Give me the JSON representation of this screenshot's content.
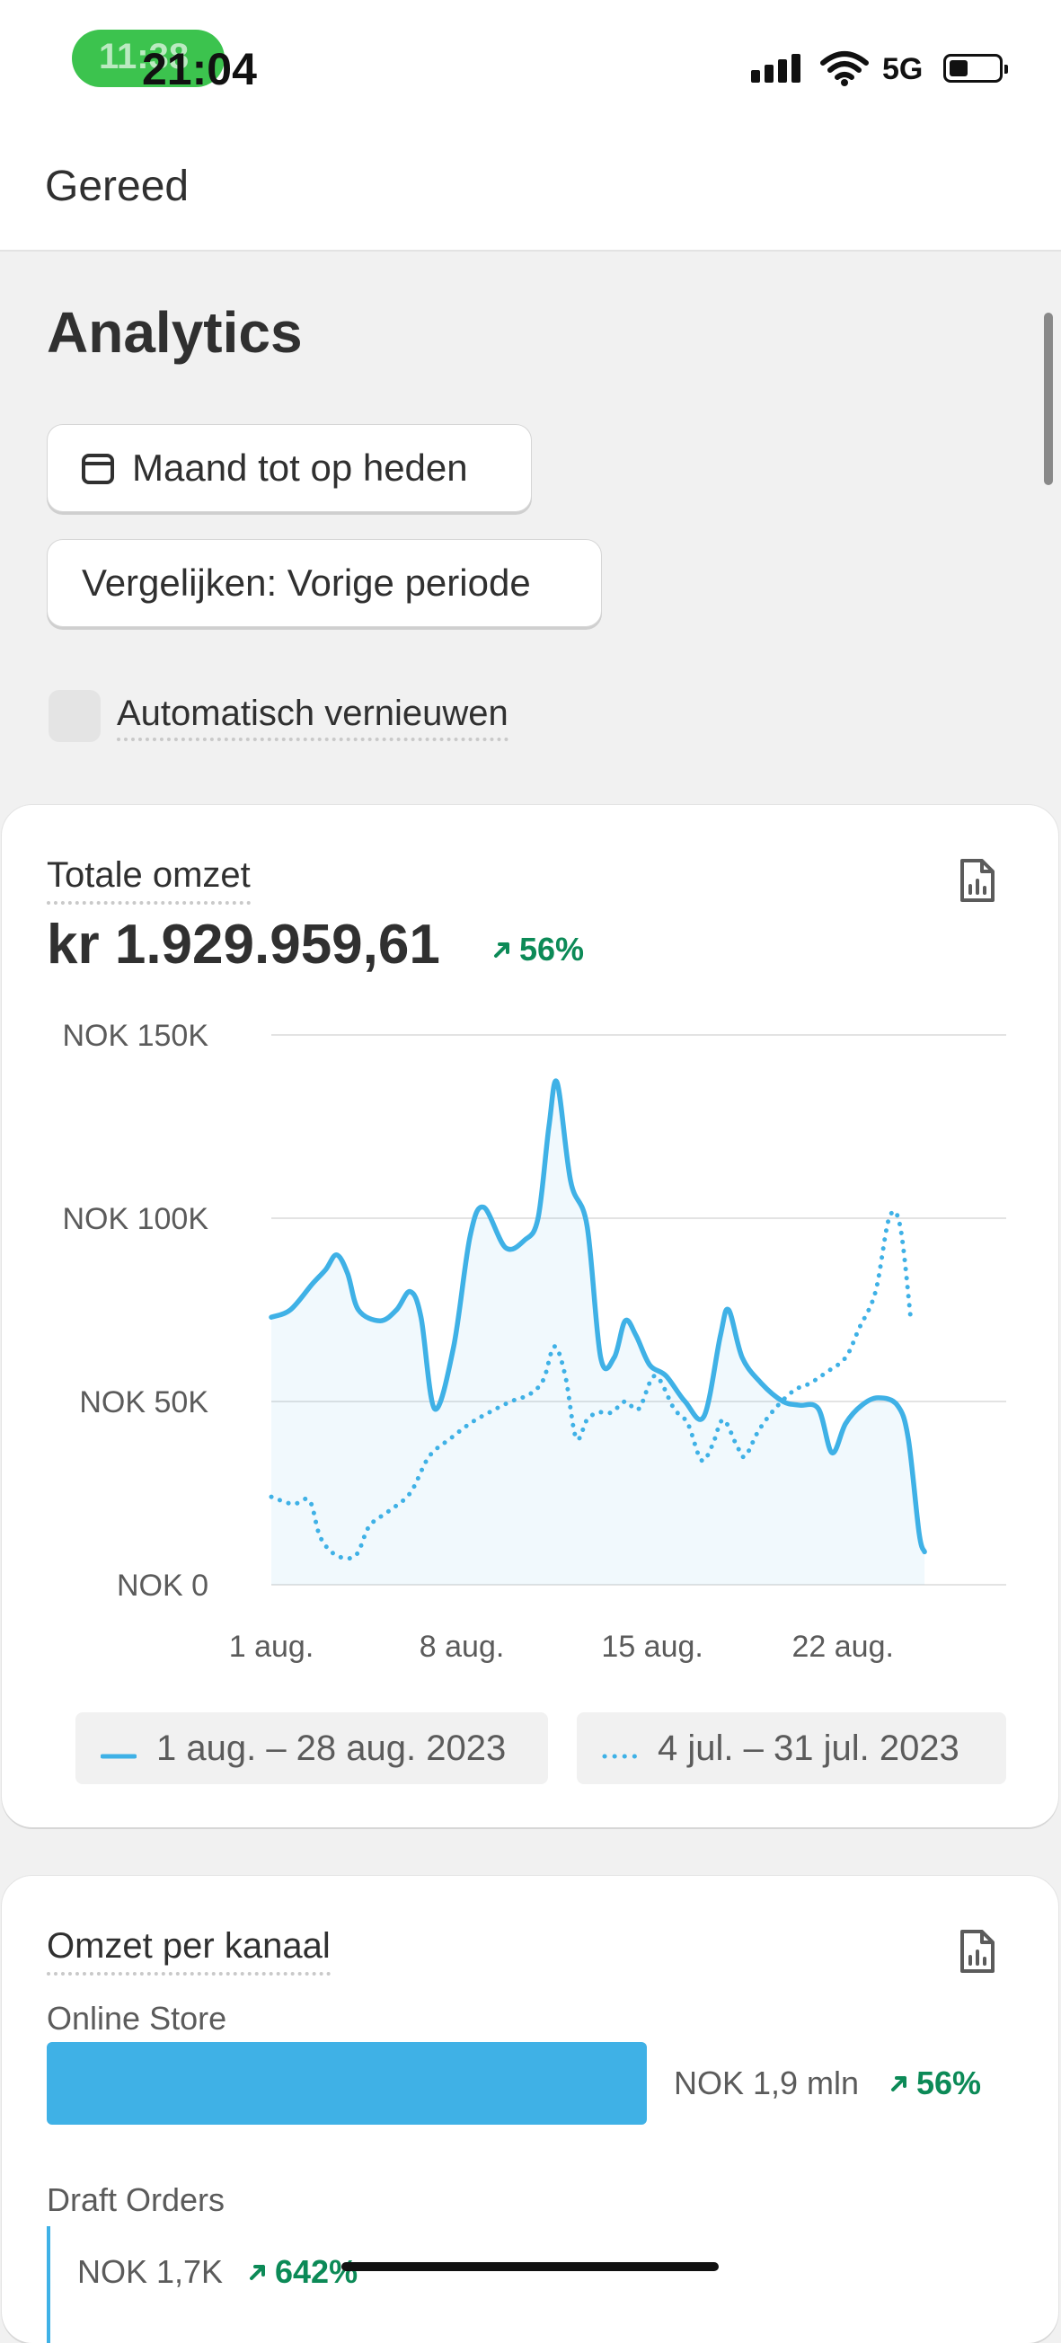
{
  "status_bar": {
    "pill_time": "11:38",
    "time": "21:04",
    "network": "5G"
  },
  "top_bar": {
    "done_label": "Gereed"
  },
  "page": {
    "title": "Analytics",
    "date_range_button": "Maand tot op heden",
    "compare_button": "Vergelijken: Vorige periode",
    "auto_refresh_label": "Automatisch vernieuwen"
  },
  "total_sales": {
    "title": "Totale omzet",
    "value": "kr 1.929.959,61",
    "change": "56%",
    "legend": [
      "1 aug. – 28 aug. 2023",
      "4 jul. – 31 jul. 2023"
    ]
  },
  "chart_data": {
    "type": "line",
    "y_ticks": [
      "NOK 0",
      "NOK 50K",
      "NOK 100K",
      "NOK 150K"
    ],
    "ylim": [
      0,
      150000
    ],
    "x_ticks": [
      {
        "x": 1,
        "label": "1 aug."
      },
      {
        "x": 8,
        "label": "8 aug."
      },
      {
        "x": 15,
        "label": "15 aug."
      },
      {
        "x": 22,
        "label": "22 aug."
      }
    ],
    "x_range": [
      1,
      28
    ],
    "series": [
      {
        "name": "1 aug. – 28 aug. 2023",
        "style": "solid",
        "color": "#3fb1e6",
        "points": [
          [
            1,
            73000
          ],
          [
            1.7,
            75000
          ],
          [
            2.5,
            82000
          ],
          [
            3,
            86000
          ],
          [
            3.4,
            90000
          ],
          [
            3.8,
            85000
          ],
          [
            4.2,
            75000
          ],
          [
            5,
            72000
          ],
          [
            5.6,
            75000
          ],
          [
            6.1,
            80000
          ],
          [
            6.5,
            73000
          ],
          [
            7,
            48000
          ],
          [
            7.7,
            65000
          ],
          [
            8.3,
            95000
          ],
          [
            8.8,
            103000
          ],
          [
            9.6,
            92000
          ],
          [
            10.3,
            94000
          ],
          [
            10.8,
            100000
          ],
          [
            11.2,
            125000
          ],
          [
            11.5,
            137000
          ],
          [
            12,
            110000
          ],
          [
            12.6,
            98000
          ],
          [
            13.1,
            62000
          ],
          [
            13.6,
            62000
          ],
          [
            14,
            72000
          ],
          [
            14.4,
            68000
          ],
          [
            14.9,
            60000
          ],
          [
            15.5,
            57000
          ],
          [
            16.2,
            50000
          ],
          [
            16.9,
            46000
          ],
          [
            17.5,
            68000
          ],
          [
            17.8,
            75000
          ],
          [
            18.3,
            62000
          ],
          [
            19,
            55000
          ],
          [
            19.8,
            50000
          ],
          [
            20.4,
            49000
          ],
          [
            21.1,
            48000
          ],
          [
            21.6,
            36000
          ],
          [
            22.1,
            44000
          ],
          [
            22.7,
            49000
          ],
          [
            23.3,
            51000
          ],
          [
            24,
            49000
          ],
          [
            24.4,
            40000
          ],
          [
            24.8,
            14000
          ],
          [
            25,
            9000
          ]
        ]
      },
      {
        "name": "4 jul. – 31 jul. 2023",
        "style": "dotted",
        "color": "#3fb1e6",
        "points": [
          [
            1,
            24000
          ],
          [
            1.8,
            22000
          ],
          [
            2.4,
            23000
          ],
          [
            2.8,
            13000
          ],
          [
            3.4,
            8000
          ],
          [
            4.1,
            8000
          ],
          [
            4.6,
            16000
          ],
          [
            5.3,
            20000
          ],
          [
            6.1,
            25000
          ],
          [
            6.8,
            35000
          ],
          [
            7.6,
            40000
          ],
          [
            8.3,
            44000
          ],
          [
            9,
            47000
          ],
          [
            9.8,
            50000
          ],
          [
            10.5,
            52000
          ],
          [
            11,
            56000
          ],
          [
            11.4,
            65000
          ],
          [
            11.8,
            57000
          ],
          [
            12.2,
            40000
          ],
          [
            12.6,
            45000
          ],
          [
            13,
            47000
          ],
          [
            13.5,
            47000
          ],
          [
            14,
            50000
          ],
          [
            14.5,
            48000
          ],
          [
            15.1,
            57000
          ],
          [
            15.8,
            48000
          ],
          [
            16.3,
            44000
          ],
          [
            16.8,
            34000
          ],
          [
            17.2,
            38000
          ],
          [
            17.6,
            45000
          ],
          [
            18.1,
            38000
          ],
          [
            18.4,
            35000
          ],
          [
            18.9,
            42000
          ],
          [
            19.5,
            48000
          ],
          [
            20.2,
            53000
          ],
          [
            20.8,
            55000
          ],
          [
            21.4,
            58000
          ],
          [
            22.1,
            62000
          ],
          [
            22.6,
            70000
          ],
          [
            23.2,
            80000
          ],
          [
            23.7,
            100000
          ],
          [
            24.1,
            98000
          ],
          [
            24.5,
            72000
          ]
        ]
      }
    ]
  },
  "channel_sales": {
    "title": "Omzet per kanaal",
    "channels": [
      {
        "name": "Online Store",
        "value": "NOK 1,9 mln",
        "change": "56%",
        "share": 0.9991
      },
      {
        "name": "Draft Orders",
        "value": "NOK 1,7K",
        "change": "642%",
        "share": 0.0009
      }
    ]
  },
  "colors": {
    "accent": "#3fb1e6",
    "positive": "#0c8a57",
    "status_pill": "#3cc34e"
  }
}
